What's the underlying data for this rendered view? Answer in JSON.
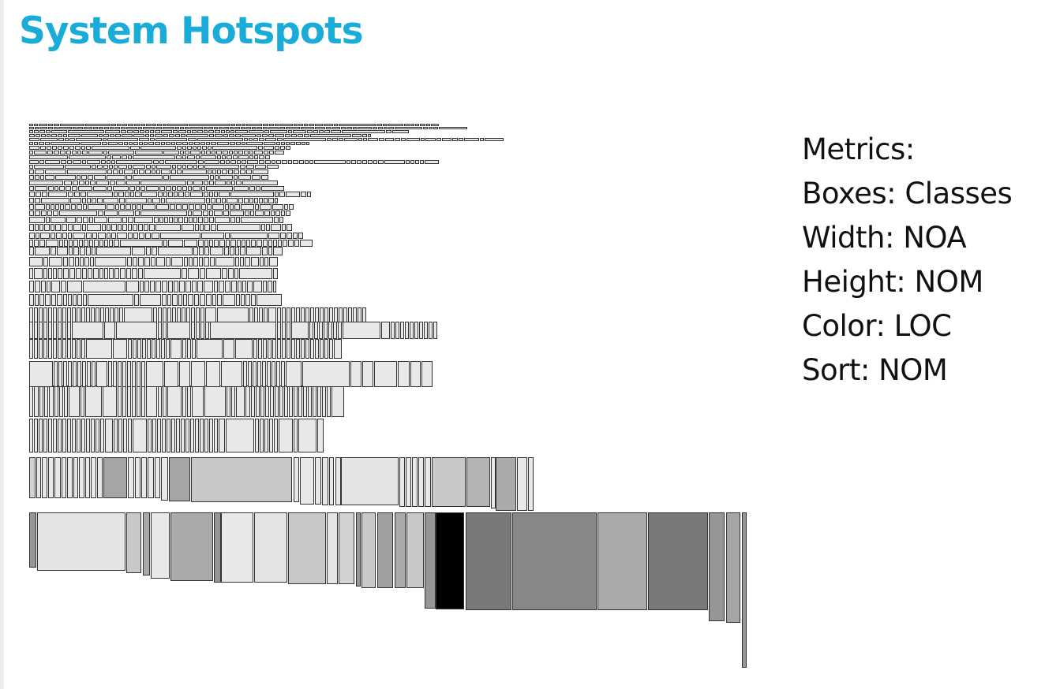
{
  "page": {
    "title": "System Hotspots",
    "title_color": "#19acd8"
  },
  "legend": {
    "heading": "Metrics:",
    "boxes": "Boxes: Classes",
    "width": "Width: NOA",
    "height": "Height: NOM",
    "color": "Color: LOC",
    "sort": "Sort: NOM"
  },
  "colors": {
    "box_stroke": "#333333",
    "loc_scale": [
      "#ffffff",
      "#000000"
    ]
  },
  "chart_data": {
    "type": "treemap",
    "marks": "rectangles, one per class",
    "width_metric": "NOA",
    "height_metric": "NOM",
    "color_metric": "LOC",
    "sort_metric": "NOM"
  }
}
